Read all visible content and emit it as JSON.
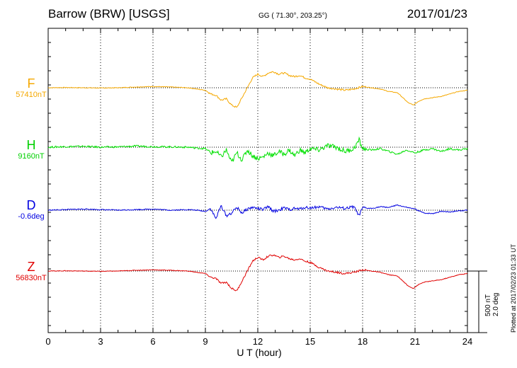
{
  "header": {
    "station": "Barrow (BRW)  [USGS]",
    "coords": "GG ( 71.30°, 203.25°)",
    "date": "2017/01/23"
  },
  "plotted_note": "Plotted at 2017/02/23 01:33 UT",
  "scale_bar": {
    "line1": "500 nT",
    "line2": "2.0 deg"
  },
  "colors": {
    "F": "#f5a800",
    "H": "#00e000",
    "D": "#0000e0",
    "Z": "#e00000"
  },
  "chart_data": {
    "type": "line",
    "title": "Barrow (BRW)  [USGS]",
    "xlabel": "U T (hour)",
    "xlim": [
      0,
      24
    ],
    "xticks": [
      "0",
      "3",
      "6",
      "9",
      "12",
      "15",
      "18",
      "21",
      "24"
    ],
    "grid": true,
    "series": [
      {
        "name": "F",
        "baseline": "57410nT",
        "unit": "nT",
        "x": [
          0,
          1,
          2,
          3,
          4,
          5,
          6,
          7,
          8,
          8.5,
          9,
          9.3,
          9.6,
          9.9,
          10.2,
          10.5,
          10.8,
          11.1,
          11.4,
          11.7,
          12,
          12.3,
          12.6,
          12.9,
          13.2,
          13.5,
          13.8,
          14.1,
          14.4,
          14.7,
          15,
          15.5,
          16,
          16.5,
          17,
          17.5,
          18,
          18.5,
          19,
          19.5,
          20,
          20.3,
          20.6,
          20.9,
          21.2,
          21.5,
          22,
          22.5,
          23,
          23.5,
          24
        ],
        "values": [
          0,
          1,
          0,
          -1,
          0,
          3,
          5,
          3,
          0,
          -5,
          -10,
          -25,
          -30,
          -50,
          -45,
          -70,
          -80,
          -40,
          0,
          40,
          55,
          45,
          60,
          65,
          55,
          60,
          50,
          45,
          50,
          40,
          35,
          15,
          0,
          -5,
          -10,
          -5,
          5,
          0,
          -5,
          -15,
          -20,
          -40,
          -60,
          -70,
          -55,
          -45,
          -40,
          -35,
          -25,
          -15,
          -10
        ]
      },
      {
        "name": "H",
        "baseline": "9160nT",
        "unit": "nT",
        "x": [
          0,
          1,
          2,
          3,
          4,
          5,
          6,
          7,
          8,
          8.5,
          9,
          9.3,
          9.6,
          9.9,
          10.2,
          10.5,
          10.8,
          11.1,
          11.4,
          11.7,
          12,
          12.3,
          12.6,
          12.9,
          13.2,
          13.5,
          13.8,
          14.1,
          14.4,
          14.7,
          15,
          15.5,
          16,
          16.5,
          17,
          17.5,
          17.8,
          18,
          18.5,
          19,
          19.5,
          20,
          20.5,
          21,
          21.5,
          22,
          22.5,
          23,
          23.5,
          24
        ],
        "values": [
          0,
          2,
          3,
          0,
          1,
          4,
          2,
          1,
          0,
          -3,
          -5,
          -20,
          -15,
          -35,
          -10,
          -55,
          -20,
          -45,
          -10,
          -30,
          -40,
          -35,
          -20,
          -30,
          -15,
          -25,
          -10,
          -30,
          -10,
          -20,
          -5,
          -10,
          5,
          0,
          -15,
          -5,
          25,
          -5,
          -10,
          -5,
          -15,
          -25,
          -10,
          -20,
          -10,
          -5,
          -15,
          -5,
          -10,
          -5
        ]
      },
      {
        "name": "D",
        "baseline": "-0.6deg",
        "unit": "deg",
        "x": [
          0,
          1,
          2,
          3,
          4,
          5,
          6,
          7,
          8,
          8.5,
          9,
          9.3,
          9.6,
          9.9,
          10.2,
          10.5,
          10.8,
          11.1,
          11.4,
          11.7,
          12,
          12.3,
          12.6,
          12.9,
          13.2,
          13.5,
          13.8,
          14.1,
          14.4,
          14.7,
          15,
          15.5,
          16,
          16.5,
          17,
          17.5,
          17.8,
          18,
          18.5,
          19,
          19.5,
          20,
          20.5,
          21,
          21.5,
          22,
          22.5,
          23,
          23.5,
          24
        ],
        "values": [
          0,
          0.01,
          0.02,
          0.01,
          0,
          0.01,
          0.02,
          0,
          0.01,
          0,
          -0.02,
          0.03,
          -0.15,
          0.08,
          -0.1,
          -0.05,
          0.05,
          -0.05,
          0.02,
          0.05,
          0.03,
          0.01,
          0.06,
          -0.02,
          0,
          0.04,
          0.01,
          0.03,
          0.02,
          0.05,
          0.04,
          0.06,
          0.02,
          0.05,
          0.03,
          0.06,
          -0.1,
          0.04,
          0.03,
          0.06,
          0.05,
          0.09,
          0.05,
          0.02,
          -0.05,
          -0.06,
          -0.02,
          -0.03,
          -0.01,
          0
        ]
      },
      {
        "name": "Z",
        "baseline": "56830nT",
        "unit": "nT",
        "x": [
          0,
          1,
          2,
          3,
          4,
          5,
          6,
          7,
          8,
          8.5,
          9,
          9.3,
          9.6,
          9.9,
          10.2,
          10.5,
          10.8,
          11.1,
          11.4,
          11.7,
          12,
          12.3,
          12.6,
          12.9,
          13.2,
          13.5,
          13.8,
          14.1,
          14.4,
          14.7,
          15,
          15.5,
          16,
          16.5,
          17,
          17.5,
          18,
          18.5,
          19,
          19.5,
          20,
          20.3,
          20.6,
          20.9,
          21.2,
          21.5,
          22,
          22.5,
          23,
          23.5,
          24
        ],
        "values": [
          0,
          1,
          0,
          -1,
          0,
          3,
          5,
          3,
          0,
          -5,
          -10,
          -25,
          -30,
          -50,
          -45,
          -70,
          -80,
          -40,
          0,
          40,
          55,
          45,
          60,
          65,
          55,
          60,
          50,
          45,
          50,
          40,
          35,
          15,
          0,
          -5,
          -10,
          -5,
          5,
          0,
          -5,
          -15,
          -20,
          -40,
          -60,
          -70,
          -55,
          -45,
          -40,
          -35,
          -25,
          -15,
          -10
        ]
      }
    ]
  }
}
